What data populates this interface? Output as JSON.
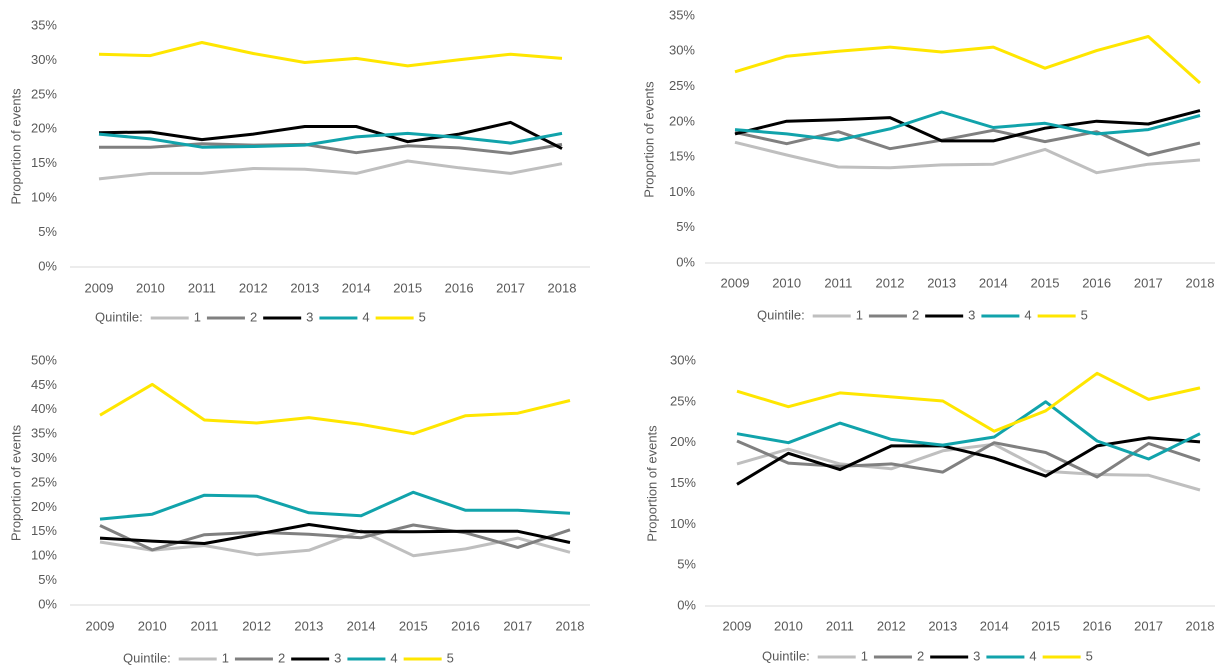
{
  "chart_data": [
    {
      "type": "line",
      "ylabel": "Proportion of events",
      "legend_title": "Quintile:",
      "grid": false,
      "categories": [
        "2009",
        "2010",
        "2011",
        "2012",
        "2013",
        "2014",
        "2015",
        "2016",
        "2017",
        "2018"
      ],
      "ylim": [
        0,
        35
      ],
      "yticks": [
        {
          "value": 0,
          "label": "0%"
        },
        {
          "value": 5,
          "label": "5%"
        },
        {
          "value": 10,
          "label": "10%"
        },
        {
          "value": 15,
          "label": "15%"
        },
        {
          "value": 20,
          "label": "20%"
        },
        {
          "value": 25,
          "label": "25%"
        },
        {
          "value": 30,
          "label": "30%"
        },
        {
          "value": 35,
          "label": "35%"
        }
      ],
      "series": [
        {
          "name": "1",
          "color": "#bfbfbf",
          "values": [
            12.8,
            13.6,
            13.6,
            14.3,
            14.2,
            13.6,
            15.4,
            14.4,
            13.6,
            15.0
          ]
        },
        {
          "name": "2",
          "color": "#808080",
          "values": [
            17.4,
            17.4,
            17.9,
            17.7,
            17.8,
            16.6,
            17.6,
            17.3,
            16.5,
            17.8
          ]
        },
        {
          "name": "3",
          "color": "#000000",
          "values": [
            19.5,
            19.6,
            18.5,
            19.3,
            20.4,
            20.4,
            18.2,
            19.3,
            21.0,
            17.2
          ]
        },
        {
          "name": "4",
          "color": "#11a3ab",
          "values": [
            19.3,
            18.6,
            17.4,
            17.5,
            17.7,
            18.9,
            19.4,
            18.8,
            18.0,
            19.4
          ]
        },
        {
          "name": "5",
          "color": "#ffe600",
          "values": [
            30.9,
            30.7,
            32.6,
            31.0,
            29.7,
            30.3,
            29.2,
            30.1,
            30.9,
            30.3
          ]
        }
      ]
    },
    {
      "type": "line",
      "ylabel": "Proportion of events",
      "legend_title": "Quintile:",
      "grid": false,
      "categories": [
        "2009",
        "2010",
        "2011",
        "2012",
        "2013",
        "2014",
        "2015",
        "2016",
        "2017",
        "2018"
      ],
      "ylim": [
        0,
        35
      ],
      "yticks": [
        {
          "value": 0,
          "label": "0%"
        },
        {
          "value": 5,
          "label": "5%"
        },
        {
          "value": 10,
          "label": "10%"
        },
        {
          "value": 15,
          "label": "15%"
        },
        {
          "value": 20,
          "label": "20%"
        },
        {
          "value": 25,
          "label": "25%"
        },
        {
          "value": 30,
          "label": "30%"
        },
        {
          "value": 35,
          "label": "35%"
        }
      ],
      "series": [
        {
          "name": "1",
          "color": "#bfbfbf",
          "values": [
            17.1,
            15.3,
            13.6,
            13.5,
            13.9,
            14.0,
            16.1,
            12.8,
            14.0,
            14.6
          ]
        },
        {
          "name": "2",
          "color": "#808080",
          "values": [
            18.5,
            16.9,
            18.6,
            16.2,
            17.4,
            18.8,
            17.2,
            18.6,
            15.3,
            17.0
          ]
        },
        {
          "name": "3",
          "color": "#000000",
          "values": [
            18.3,
            20.1,
            20.3,
            20.6,
            17.3,
            17.3,
            19.1,
            20.1,
            19.7,
            21.6
          ]
        },
        {
          "name": "4",
          "color": "#11a3ab",
          "values": [
            18.9,
            18.3,
            17.4,
            19.0,
            21.4,
            19.2,
            19.8,
            18.3,
            18.9,
            20.9
          ]
        },
        {
          "name": "5",
          "color": "#ffe600",
          "values": [
            27.1,
            29.3,
            30.0,
            30.6,
            29.9,
            30.6,
            27.6,
            30.1,
            32.1,
            25.5
          ]
        }
      ]
    },
    {
      "type": "line",
      "ylabel": "Proportion of events",
      "legend_title": "Quintile:",
      "grid": false,
      "categories": [
        "2009",
        "2010",
        "2011",
        "2012",
        "2013",
        "2014",
        "2015",
        "2016",
        "2017",
        "2018"
      ],
      "ylim": [
        0,
        50
      ],
      "yticks": [
        {
          "value": 0,
          "label": "0%"
        },
        {
          "value": 5,
          "label": "5%"
        },
        {
          "value": 10,
          "label": "10%"
        },
        {
          "value": 15,
          "label": "15%"
        },
        {
          "value": 20,
          "label": "20%"
        },
        {
          "value": 25,
          "label": "25%"
        },
        {
          "value": 30,
          "label": "30%"
        },
        {
          "value": 35,
          "label": "35%"
        },
        {
          "value": 40,
          "label": "40%"
        },
        {
          "value": 45,
          "label": "45%"
        },
        {
          "value": 50,
          "label": "50%"
        }
      ],
      "series": [
        {
          "name": "1",
          "color": "#bfbfbf",
          "values": [
            12.9,
            11.2,
            12.2,
            10.3,
            11.2,
            15.2,
            10.1,
            11.5,
            13.7,
            10.8
          ]
        },
        {
          "name": "2",
          "color": "#808080",
          "values": [
            16.3,
            11.3,
            14.4,
            14.9,
            14.5,
            13.8,
            16.4,
            14.8,
            11.8,
            15.4
          ]
        },
        {
          "name": "3",
          "color": "#000000",
          "values": [
            13.7,
            13.1,
            12.6,
            14.5,
            16.5,
            15.0,
            15.0,
            15.1,
            15.1,
            12.8
          ]
        },
        {
          "name": "4",
          "color": "#11a3ab",
          "values": [
            17.6,
            18.6,
            22.5,
            22.3,
            18.9,
            18.3,
            23.1,
            19.4,
            19.4,
            18.8
          ]
        },
        {
          "name": "5",
          "color": "#ffe600",
          "values": [
            38.9,
            45.2,
            37.9,
            37.3,
            38.4,
            37.0,
            35.1,
            38.8,
            39.3,
            41.9
          ]
        }
      ]
    },
    {
      "type": "line",
      "ylabel": "Proportion of events",
      "legend_title": "Quintile:",
      "grid": false,
      "categories": [
        "2009",
        "2010",
        "2011",
        "2012",
        "2013",
        "2014",
        "2015",
        "2016",
        "2017",
        "2018"
      ],
      "ylim": [
        0,
        30
      ],
      "yticks": [
        {
          "value": 0,
          "label": "0%"
        },
        {
          "value": 5,
          "label": "5%"
        },
        {
          "value": 10,
          "label": "10%"
        },
        {
          "value": 15,
          "label": "15%"
        },
        {
          "value": 20,
          "label": "20%"
        },
        {
          "value": 25,
          "label": "25%"
        },
        {
          "value": 30,
          "label": "30%"
        }
      ],
      "series": [
        {
          "name": "1",
          "color": "#bfbfbf",
          "values": [
            17.4,
            19.2,
            17.4,
            16.8,
            19.0,
            19.8,
            16.5,
            16.1,
            16.0,
            14.2
          ]
        },
        {
          "name": "2",
          "color": "#808080",
          "values": [
            20.2,
            17.5,
            17.1,
            17.4,
            16.4,
            20.0,
            18.8,
            15.8,
            19.9,
            17.8
          ]
        },
        {
          "name": "3",
          "color": "#000000",
          "values": [
            14.9,
            18.7,
            16.7,
            19.6,
            19.6,
            18.1,
            15.9,
            19.6,
            20.6,
            20.1
          ]
        },
        {
          "name": "4",
          "color": "#11a3ab",
          "values": [
            21.1,
            20.0,
            22.4,
            20.4,
            19.7,
            20.7,
            25.0,
            20.2,
            18.0,
            21.1
          ]
        },
        {
          "name": "5",
          "color": "#ffe600",
          "values": [
            26.3,
            24.4,
            26.1,
            25.6,
            25.1,
            21.4,
            23.9,
            28.5,
            25.3,
            26.7
          ]
        }
      ]
    }
  ]
}
